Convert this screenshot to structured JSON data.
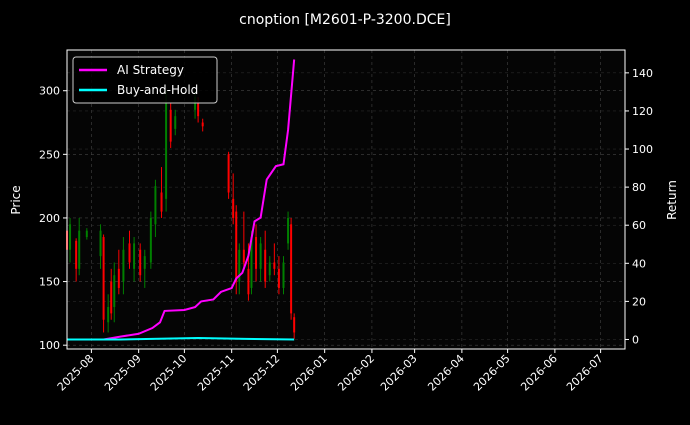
{
  "chart_data": {
    "type": "candlestick+line",
    "title": "cnoption [M2601-P-3200.DCE]",
    "ylabel_left": "Price",
    "ylabel_right": "Return",
    "xlim": [
      "2025-07-16",
      "2026-07-17"
    ],
    "ylim_left": [
      97,
      332
    ],
    "ylim_right": [
      -5,
      152
    ],
    "x_ticks": [
      "2025-08",
      "2025-09",
      "2025-10",
      "2025-11",
      "2025-12",
      "2026-01",
      "2026-02",
      "2026-03",
      "2026-04",
      "2026-05",
      "2026-06",
      "2026-07"
    ],
    "y_ticks_left": [
      100,
      150,
      200,
      250,
      300
    ],
    "y_ticks_right": [
      0,
      20,
      40,
      60,
      80,
      100,
      120,
      140
    ],
    "grid": true,
    "legend_placement": "top-left",
    "colors": {
      "up": "#008000",
      "down": "#ff0000",
      "ai": "#ff00ff",
      "bh": "#00ffff",
      "background": "#000000"
    },
    "candles": [
      [
        "2025-07-16",
        190,
        198,
        170,
        175
      ],
      [
        "2025-07-18",
        175,
        200,
        165,
        195
      ],
      [
        "2025-07-22",
        182,
        184,
        150,
        160
      ],
      [
        "2025-07-24",
        160,
        200,
        155,
        190
      ],
      [
        "2025-07-29",
        185,
        192,
        183,
        190
      ],
      [
        "2025-08-07",
        170,
        195,
        160,
        190
      ],
      [
        "2025-08-09",
        185,
        187,
        110,
        120
      ],
      [
        "2025-08-12",
        118,
        140,
        110,
        130
      ],
      [
        "2025-08-14",
        150,
        160,
        120,
        125
      ],
      [
        "2025-08-16",
        130,
        165,
        118,
        155
      ],
      [
        "2025-08-19",
        160,
        175,
        140,
        145
      ],
      [
        "2025-08-22",
        150,
        185,
        140,
        175
      ],
      [
        "2025-08-26",
        180,
        190,
        160,
        165
      ],
      [
        "2025-08-29",
        160,
        185,
        150,
        180
      ],
      [
        "2025-09-02",
        175,
        180,
        150,
        155
      ],
      [
        "2025-09-05",
        160,
        175,
        145,
        170
      ],
      [
        "2025-09-09",
        165,
        205,
        160,
        200
      ],
      [
        "2025-09-12",
        195,
        230,
        185,
        225
      ],
      [
        "2025-09-16",
        220,
        240,
        200,
        205
      ],
      [
        "2025-09-19",
        215,
        300,
        205,
        290
      ],
      [
        "2025-09-22",
        285,
        290,
        255,
        260
      ],
      [
        "2025-09-25",
        270,
        285,
        265,
        280
      ],
      [
        "2025-10-08",
        285,
        300,
        278,
        295
      ],
      [
        "2025-10-10",
        290,
        295,
        275,
        280
      ],
      [
        "2025-10-13",
        275,
        278,
        268,
        272
      ],
      [
        "2025-10-30",
        250,
        252,
        215,
        220
      ],
      [
        "2025-11-02",
        215,
        235,
        195,
        200
      ],
      [
        "2025-11-04",
        205,
        210,
        140,
        150
      ],
      [
        "2025-11-06",
        150,
        180,
        140,
        175
      ],
      [
        "2025-11-09",
        175,
        205,
        160,
        165
      ],
      [
        "2025-11-12",
        160,
        180,
        135,
        140
      ],
      [
        "2025-11-14",
        145,
        190,
        140,
        185
      ],
      [
        "2025-11-17",
        185,
        195,
        150,
        160
      ],
      [
        "2025-11-20",
        160,
        185,
        150,
        180
      ],
      [
        "2025-11-23",
        175,
        190,
        145,
        150
      ],
      [
        "2025-11-26",
        155,
        170,
        150,
        165
      ],
      [
        "2025-11-29",
        165,
        180,
        155,
        160
      ],
      [
        "2025-12-02",
        160,
        170,
        140,
        145
      ],
      [
        "2025-12-05",
        145,
        170,
        140,
        165
      ],
      [
        "2025-12-08",
        180,
        205,
        175,
        200
      ],
      [
        "2025-12-10",
        195,
        200,
        120,
        125
      ],
      [
        "2025-12-12",
        122,
        125,
        105,
        110
      ]
    ],
    "series": [
      {
        "name": "AI Strategy",
        "points": [
          [
            "2025-07-16",
            0
          ],
          [
            "2025-08-09",
            0
          ],
          [
            "2025-08-20",
            1.5
          ],
          [
            "2025-09-01",
            3
          ],
          [
            "2025-09-10",
            6
          ],
          [
            "2025-09-15",
            9
          ],
          [
            "2025-09-18",
            15
          ],
          [
            "2025-10-01",
            15.5
          ],
          [
            "2025-10-08",
            17
          ],
          [
            "2025-10-12",
            20
          ],
          [
            "2025-10-20",
            21
          ],
          [
            "2025-10-25",
            25
          ],
          [
            "2025-11-01",
            27
          ],
          [
            "2025-11-04",
            32
          ],
          [
            "2025-11-08",
            35
          ],
          [
            "2025-11-12",
            44
          ],
          [
            "2025-11-16",
            62
          ],
          [
            "2025-11-20",
            64
          ],
          [
            "2025-11-24",
            84
          ],
          [
            "2025-11-30",
            91
          ],
          [
            "2025-12-05",
            92
          ],
          [
            "2025-12-08",
            110
          ],
          [
            "2025-12-12",
            147
          ]
        ]
      },
      {
        "name": "Buy-and-Hold",
        "points": [
          [
            "2025-07-16",
            0
          ],
          [
            "2025-08-20",
            0
          ],
          [
            "2025-09-10",
            0.3
          ],
          [
            "2025-10-10",
            0.8
          ],
          [
            "2025-11-10",
            0.3
          ],
          [
            "2025-12-12",
            0
          ]
        ]
      }
    ]
  }
}
